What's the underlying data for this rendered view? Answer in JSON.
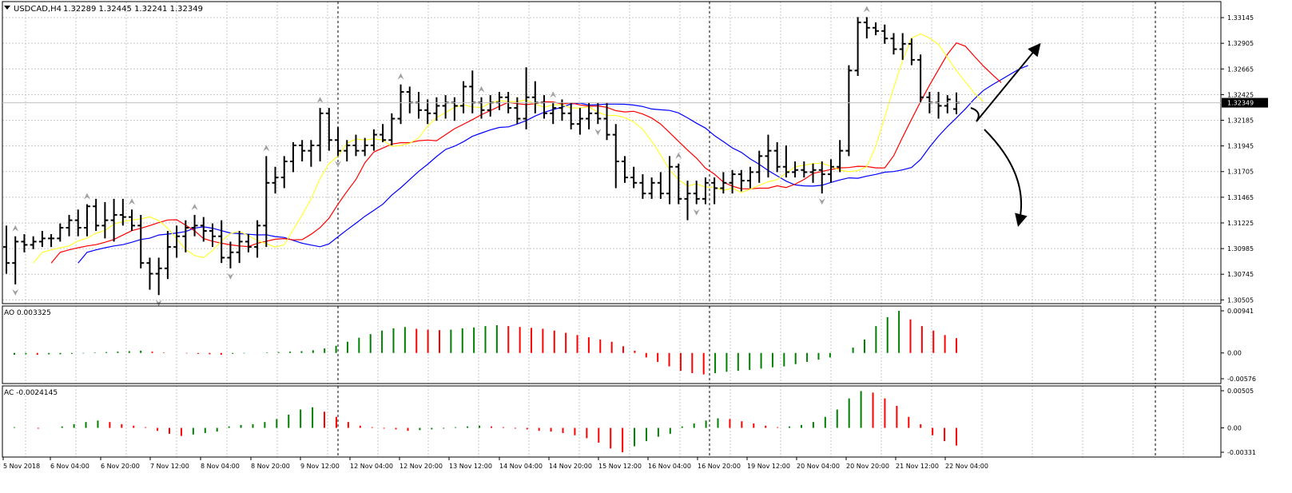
{
  "header": {
    "symbol_label": "USDCAD,H4",
    "ohlc_label": "1.32289 1.32445 1.32241 1.32349"
  },
  "colors": {
    "background": "#ffffff",
    "grid": "#c8c8c8",
    "bar": "#000000",
    "fractal": "#a0a0a0",
    "ma_fast": "#ffff33",
    "ma_mid": "#ff0000",
    "ma_slow": "#0000ff",
    "osc_up": "#008000",
    "osc_down": "#ff0000",
    "price_line": "#c0c0c0",
    "current_price_bg": "#000000",
    "current_price_text": "#ffffff"
  },
  "chart_data": [
    {
      "type": "ohlc",
      "title": "USDCAD,H4",
      "subtitle": "1.32289 1.32445 1.32241 1.32349",
      "ylim": [
        1.305,
        1.3325
      ],
      "y_ticks": [
        "1.33145",
        "1.32905",
        "1.32665",
        "1.32425",
        "1.32185",
        "1.31945",
        "1.31705",
        "1.31465",
        "1.31225",
        "1.30985",
        "1.30745",
        "1.30505"
      ],
      "current_price": "1.32349",
      "x_ticks": [
        "5 Nov 2018",
        "6 Nov 04:00",
        "6 Nov 20:00",
        "7 Nov 12:00",
        "8 Nov 04:00",
        "8 Nov 20:00",
        "9 Nov 12:00",
        "12 Nov 04:00",
        "12 Nov 20:00",
        "13 Nov 12:00",
        "14 Nov 04:00",
        "14 Nov 20:00",
        "15 Nov 12:00",
        "16 Nov 04:00",
        "16 Nov 20:00",
        "19 Nov 12:00",
        "20 Nov 04:00",
        "20 Nov 20:00",
        "21 Nov 12:00",
        "22 Nov 04:00"
      ],
      "bars": [
        [
          1.31,
          1.312,
          1.3075,
          1.3085
        ],
        [
          1.3085,
          1.311,
          1.3065,
          1.3105
        ],
        [
          1.3105,
          1.3112,
          1.3095,
          1.3102
        ],
        [
          1.3102,
          1.311,
          1.3098,
          1.3105
        ],
        [
          1.3105,
          1.3115,
          1.31,
          1.3108
        ],
        [
          1.3108,
          1.3112,
          1.31,
          1.3108
        ],
        [
          1.3108,
          1.3122,
          1.3105,
          1.3118
        ],
        [
          1.3118,
          1.313,
          1.311,
          1.3125
        ],
        [
          1.3125,
          1.3135,
          1.311,
          1.3118
        ],
        [
          1.3118,
          1.314,
          1.311,
          1.3138
        ],
        [
          1.3138,
          1.3145,
          1.3115,
          1.312
        ],
        [
          1.312,
          1.3142,
          1.3108,
          1.3125
        ],
        [
          1.3125,
          1.3145,
          1.3105,
          1.313
        ],
        [
          1.313,
          1.3145,
          1.312,
          1.3128
        ],
        [
          1.3128,
          1.3135,
          1.3115,
          1.312
        ],
        [
          1.312,
          1.313,
          1.308,
          1.3085
        ],
        [
          1.3085,
          1.309,
          1.306,
          1.3075
        ],
        [
          1.3075,
          1.309,
          1.3055,
          1.308
        ],
        [
          1.308,
          1.3115,
          1.307,
          1.31
        ],
        [
          1.31,
          1.312,
          1.309,
          1.311
        ],
        [
          1.311,
          1.3125,
          1.3095,
          1.3118
        ],
        [
          1.3118,
          1.313,
          1.311,
          1.312
        ],
        [
          1.312,
          1.3128,
          1.3105,
          1.3115
        ],
        [
          1.3115,
          1.3122,
          1.31,
          1.311
        ],
        [
          1.311,
          1.3125,
          1.3085,
          1.309
        ],
        [
          1.309,
          1.3105,
          1.308,
          1.3095
        ],
        [
          1.3095,
          1.3115,
          1.3085,
          1.3105
        ],
        [
          1.3105,
          1.3112,
          1.3095,
          1.31
        ],
        [
          1.31,
          1.3125,
          1.309,
          1.312
        ],
        [
          1.312,
          1.3185,
          1.31,
          1.316
        ],
        [
          1.316,
          1.3175,
          1.315,
          1.3165
        ],
        [
          1.3165,
          1.3185,
          1.3155,
          1.318
        ],
        [
          1.318,
          1.3198,
          1.317,
          1.3195
        ],
        [
          1.3195,
          1.32,
          1.318,
          1.319
        ],
        [
          1.319,
          1.32,
          1.3175,
          1.3195
        ],
        [
          1.3195,
          1.323,
          1.318,
          1.3225
        ],
        [
          1.3225,
          1.323,
          1.319,
          1.32
        ],
        [
          1.32,
          1.3212,
          1.3185,
          1.319
        ],
        [
          1.319,
          1.32,
          1.318,
          1.3195
        ],
        [
          1.3195,
          1.3205,
          1.3185,
          1.319
        ],
        [
          1.319,
          1.3202,
          1.3185,
          1.3195
        ],
        [
          1.3195,
          1.321,
          1.319,
          1.3205
        ],
        [
          1.3205,
          1.3215,
          1.3198,
          1.32
        ],
        [
          1.32,
          1.3225,
          1.3195,
          1.322
        ],
        [
          1.322,
          1.3252,
          1.3215,
          1.3245
        ],
        [
          1.3245,
          1.325,
          1.3225,
          1.3235
        ],
        [
          1.3235,
          1.3245,
          1.322,
          1.3228
        ],
        [
          1.3228,
          1.3238,
          1.3215,
          1.3225
        ],
        [
          1.3225,
          1.324,
          1.3218,
          1.3232
        ],
        [
          1.3232,
          1.3242,
          1.322,
          1.3235
        ],
        [
          1.3235,
          1.324,
          1.3218,
          1.3232
        ],
        [
          1.3232,
          1.3255,
          1.3225,
          1.325
        ],
        [
          1.325,
          1.3265,
          1.3225,
          1.3235
        ],
        [
          1.3235,
          1.324,
          1.322,
          1.3228
        ],
        [
          1.3228,
          1.3242,
          1.3222,
          1.3235
        ],
        [
          1.3235,
          1.3245,
          1.3228,
          1.324
        ],
        [
          1.324,
          1.3245,
          1.3225,
          1.323
        ],
        [
          1.323,
          1.324,
          1.3215,
          1.322
        ],
        [
          1.322,
          1.3268,
          1.321,
          1.324
        ],
        [
          1.324,
          1.3255,
          1.3225,
          1.3235
        ],
        [
          1.3235,
          1.3242,
          1.322,
          1.3225
        ],
        [
          1.3225,
          1.3235,
          1.3215,
          1.323
        ],
        [
          1.323,
          1.3238,
          1.3218,
          1.3225
        ],
        [
          1.3225,
          1.3235,
          1.321,
          1.3215
        ],
        [
          1.3215,
          1.323,
          1.3205,
          1.322
        ],
        [
          1.322,
          1.3235,
          1.321,
          1.3225
        ],
        [
          1.3225,
          1.3235,
          1.3215,
          1.322
        ],
        [
          1.322,
          1.3235,
          1.32,
          1.3205
        ],
        [
          1.3205,
          1.3215,
          1.3155,
          1.318
        ],
        [
          1.318,
          1.3185,
          1.316,
          1.3165
        ],
        [
          1.3165,
          1.3175,
          1.3155,
          1.316
        ],
        [
          1.316,
          1.3168,
          1.3145,
          1.315
        ],
        [
          1.315,
          1.3165,
          1.3145,
          1.316
        ],
        [
          1.316,
          1.317,
          1.3145,
          1.315
        ],
        [
          1.315,
          1.3185,
          1.314,
          1.3175
        ],
        [
          1.3175,
          1.3178,
          1.314,
          1.3145
        ],
        [
          1.3145,
          1.3162,
          1.3125,
          1.315
        ],
        [
          1.315,
          1.3162,
          1.314,
          1.3145
        ],
        [
          1.3145,
          1.3165,
          1.314,
          1.316
        ],
        [
          1.316,
          1.3165,
          1.314,
          1.3155
        ],
        [
          1.3155,
          1.317,
          1.315,
          1.316
        ],
        [
          1.316,
          1.3172,
          1.315,
          1.3168
        ],
        [
          1.3168,
          1.3172,
          1.3152,
          1.3162
        ],
        [
          1.3162,
          1.3175,
          1.3155,
          1.317
        ],
        [
          1.317,
          1.319,
          1.316,
          1.3185
        ],
        [
          1.3185,
          1.3205,
          1.3165,
          1.319
        ],
        [
          1.319,
          1.3198,
          1.317,
          1.3175
        ],
        [
          1.3175,
          1.3195,
          1.3165,
          1.317
        ],
        [
          1.317,
          1.318,
          1.3165,
          1.3172
        ],
        [
          1.3172,
          1.318,
          1.3165,
          1.317
        ],
        [
          1.317,
          1.3178,
          1.316,
          1.3172
        ],
        [
          1.3172,
          1.318,
          1.315,
          1.3168
        ],
        [
          1.3168,
          1.3182,
          1.316,
          1.3175
        ],
        [
          1.3175,
          1.32,
          1.317,
          1.319
        ],
        [
          1.319,
          1.327,
          1.3185,
          1.3265
        ],
        [
          1.3265,
          1.3315,
          1.326,
          1.331
        ],
        [
          1.331,
          1.3315,
          1.3295,
          1.3305
        ],
        [
          1.3305,
          1.331,
          1.3298,
          1.3302
        ],
        [
          1.3302,
          1.3308,
          1.329,
          1.3295
        ],
        [
          1.3295,
          1.33,
          1.328,
          1.3285
        ],
        [
          1.3285,
          1.33,
          1.3275,
          1.329
        ],
        [
          1.329,
          1.3295,
          1.327,
          1.3275
        ],
        [
          1.3275,
          1.328,
          1.3235,
          1.324
        ],
        [
          1.324,
          1.3245,
          1.3225,
          1.3235
        ],
        [
          1.3235,
          1.3245,
          1.322,
          1.3232
        ],
        [
          1.3232,
          1.3242,
          1.3225,
          1.3238
        ],
        [
          1.3229,
          1.32445,
          1.32241,
          1.32349
        ]
      ],
      "fractals_up_index": [
        1,
        9,
        14,
        21,
        29,
        35,
        44,
        53,
        61,
        75,
        96
      ],
      "fractals_down_index": [
        1,
        17,
        25,
        37,
        66,
        77,
        91
      ],
      "arrows": [
        "up-right",
        "down-right"
      ]
    },
    {
      "type": "bar",
      "title": "AO 0.003325",
      "ylim": [
        -0.00576,
        0.00941
      ],
      "y_ticks": [
        "0.00941",
        "0.00",
        "-0.00576"
      ],
      "values": [
        -0.0004,
        -0.0003,
        -0.0004,
        -0.0003,
        -0.0003,
        -0.0002,
        -0.0001,
        0.0001,
        0.0002,
        0.0003,
        0.0004,
        0.0005,
        0.0003,
        0.0001,
        0.0,
        -0.0001,
        -0.0002,
        -0.0003,
        -0.0004,
        -0.0002,
        -0.0001,
        0.0,
        0.0001,
        0.0002,
        0.0003,
        0.0004,
        0.0006,
        0.001,
        0.0016,
        0.0025,
        0.0034,
        0.0042,
        0.005,
        0.0055,
        0.0058,
        0.0054,
        0.0052,
        0.0051,
        0.0052,
        0.0055,
        0.0057,
        0.006,
        0.0062,
        0.006,
        0.0058,
        0.0056,
        0.0054,
        0.005,
        0.0045,
        0.004,
        0.0035,
        0.003,
        0.0025,
        0.0015,
        0.0005,
        -0.001,
        -0.002,
        -0.003,
        -0.004,
        -0.0045,
        -0.0048,
        -0.0045,
        -0.0042,
        -0.004,
        -0.0038,
        -0.0035,
        -0.0032,
        -0.003,
        -0.0025,
        -0.002,
        -0.0015,
        -0.001,
        0.0,
        0.0012,
        0.003,
        0.006,
        0.008,
        0.0094,
        0.0075,
        0.006,
        0.005,
        0.004,
        0.0033
      ]
    },
    {
      "type": "bar",
      "title": "AC -0.0024145",
      "ylim": [
        -0.00331,
        0.00505
      ],
      "y_ticks": [
        "0.00505",
        "0.00",
        "-0.00331"
      ],
      "values": [
        0.0001,
        0.0,
        -0.0001,
        -0.0,
        0.0002,
        0.0005,
        0.0008,
        0.001,
        0.0008,
        0.0005,
        0.0003,
        0.0001,
        -0.0004,
        -0.0008,
        -0.0011,
        -0.0009,
        -0.0007,
        -0.0005,
        0.0002,
        0.0004,
        0.0005,
        0.0008,
        0.0012,
        0.0018,
        0.0025,
        0.0028,
        0.0022,
        0.0015,
        0.0008,
        0.0003,
        0.0001,
        -0.0001,
        -0.0002,
        -0.0004,
        -0.0003,
        -0.0002,
        -0.0001,
        0.0001,
        0.0002,
        0.0003,
        0.0002,
        0.0001,
        -0.0001,
        -0.0002,
        -0.0004,
        -0.0005,
        -0.0007,
        -0.001,
        -0.0014,
        -0.002,
        -0.0028,
        -0.0033,
        -0.0025,
        -0.0018,
        -0.0012,
        -0.0008,
        0.0002,
        0.0006,
        0.001,
        0.0013,
        0.0012,
        0.0009,
        0.0006,
        0.0003,
        0.0001,
        0.0002,
        0.0004,
        0.0008,
        0.0015,
        0.0025,
        0.004,
        0.005,
        0.0048,
        0.004,
        0.003,
        0.0015,
        0.0005,
        -0.001,
        -0.0018,
        -0.0024
      ]
    }
  ]
}
